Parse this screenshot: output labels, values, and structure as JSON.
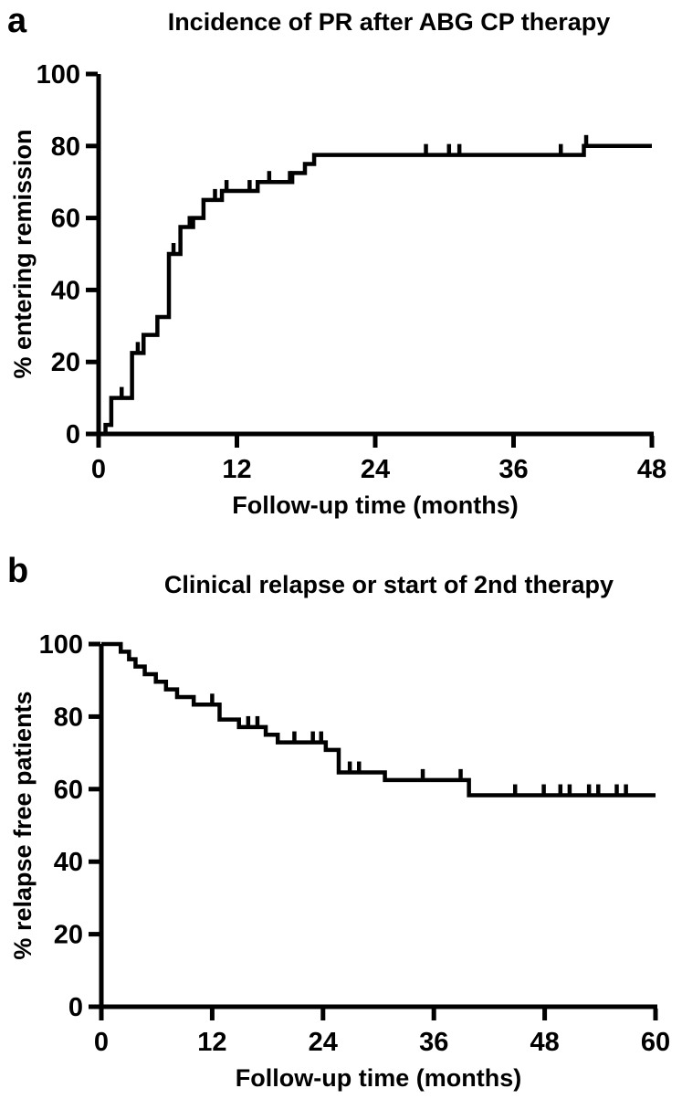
{
  "page": {
    "background_color": "#ffffff",
    "ink_color": "#000000"
  },
  "chart_data": [
    {
      "type": "line",
      "subtype": "kaplan-meier-step",
      "panel_label": "a",
      "title": "Incidence of PR after ABG CP therapy",
      "xlabel": "Follow-up time (months)",
      "ylabel": "% entering remission",
      "xlim": [
        0,
        48
      ],
      "ylim": [
        0,
        100
      ],
      "xticks": [
        0,
        12,
        24,
        36,
        48
      ],
      "yticks": [
        0,
        20,
        40,
        60,
        80,
        100
      ],
      "grid": "off",
      "legend": "none",
      "direction": "increasing",
      "steps": [
        [
          0,
          0
        ],
        [
          0.6,
          2.5
        ],
        [
          1.1,
          10
        ],
        [
          2.9,
          22.5
        ],
        [
          3.9,
          27.5
        ],
        [
          5.1,
          32.5
        ],
        [
          6.1,
          50
        ],
        [
          7.1,
          57.5
        ],
        [
          8.2,
          60
        ],
        [
          9.1,
          65
        ],
        [
          10.7,
          67.5
        ],
        [
          13.8,
          70
        ],
        [
          16.8,
          72.5
        ],
        [
          17.9,
          75
        ],
        [
          18.7,
          77.5
        ],
        [
          42.1,
          80
        ],
        [
          48,
          80
        ]
      ],
      "censor_marks": [
        [
          2.0,
          10
        ],
        [
          3.4,
          22.5
        ],
        [
          6.5,
          50
        ],
        [
          7.9,
          57.5
        ],
        [
          10.1,
          65
        ],
        [
          11.1,
          67.5
        ],
        [
          13.1,
          67.5
        ],
        [
          14.8,
          70
        ],
        [
          16.6,
          70
        ],
        [
          28.4,
          77.5
        ],
        [
          30.4,
          77.5
        ],
        [
          31.3,
          77.5
        ],
        [
          40.1,
          77.5
        ],
        [
          42.3,
          80
        ]
      ]
    },
    {
      "type": "line",
      "subtype": "kaplan-meier-step",
      "panel_label": "b",
      "title": "Clinical relapse or start of 2nd therapy",
      "xlabel": "Follow-up time (months)",
      "ylabel": "% relapse free patients",
      "xlim": [
        0,
        60
      ],
      "ylim": [
        0,
        100
      ],
      "xticks": [
        0,
        12,
        24,
        36,
        48,
        60
      ],
      "yticks": [
        0,
        20,
        40,
        60,
        80,
        100
      ],
      "grid": "off",
      "legend": "none",
      "direction": "decreasing",
      "steps": [
        [
          0,
          100
        ],
        [
          2.1,
          97.9
        ],
        [
          3.0,
          95.8
        ],
        [
          3.7,
          93.8
        ],
        [
          4.7,
          91.7
        ],
        [
          5.9,
          89.6
        ],
        [
          7.0,
          87.5
        ],
        [
          8.2,
          85.4
        ],
        [
          10.0,
          83.3
        ],
        [
          12.8,
          79.2
        ],
        [
          14.9,
          77.1
        ],
        [
          17.8,
          75.0
        ],
        [
          19.1,
          72.9
        ],
        [
          24.3,
          70.8
        ],
        [
          25.7,
          64.6
        ],
        [
          30.7,
          62.5
        ],
        [
          39.8,
          58.3
        ],
        [
          60,
          58.3
        ]
      ],
      "censor_marks": [
        [
          12.0,
          83.3
        ],
        [
          15.9,
          77.1
        ],
        [
          16.9,
          77.1
        ],
        [
          20.9,
          72.9
        ],
        [
          22.9,
          72.9
        ],
        [
          23.8,
          72.9
        ],
        [
          26.9,
          64.6
        ],
        [
          27.9,
          64.6
        ],
        [
          34.8,
          62.5
        ],
        [
          38.9,
          62.5
        ],
        [
          44.8,
          58.3
        ],
        [
          47.9,
          58.3
        ],
        [
          49.7,
          58.3
        ],
        [
          50.7,
          58.3
        ],
        [
          52.8,
          58.3
        ],
        [
          53.8,
          58.3
        ],
        [
          55.8,
          58.3
        ],
        [
          56.8,
          58.3
        ]
      ]
    }
  ]
}
